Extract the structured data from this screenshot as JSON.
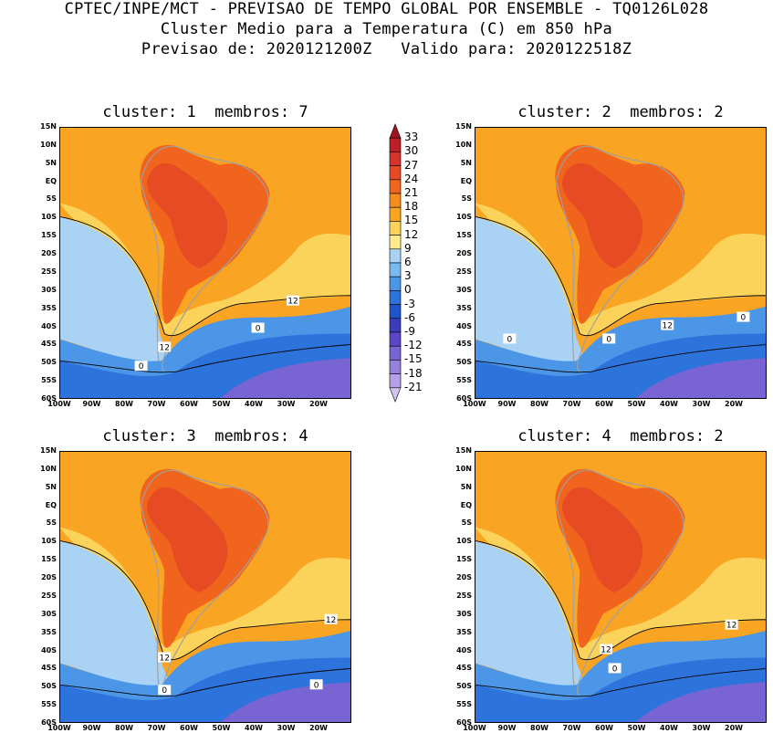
{
  "header": {
    "line1": "CPTEC/INPE/MCT - PREVISAO DE TEMPO GLOBAL POR ENSEMBLE - TQ0126L028",
    "line2": "Cluster Medio para a Temperatura (C) em 850 hPa",
    "line3": "Previsao de: 2020121200Z   Valido para: 2020122518Z"
  },
  "panels": [
    {
      "title": "cluster: 1  membros: 7",
      "contour_labels": [
        "12",
        "12",
        "0",
        "0"
      ]
    },
    {
      "title": "cluster: 2  membros: 2",
      "contour_labels": [
        "12",
        "0",
        "0",
        "0"
      ]
    },
    {
      "title": "cluster: 3  membros: 4",
      "contour_labels": [
        "12",
        "12",
        "0",
        "0"
      ]
    },
    {
      "title": "cluster: 4  membros: 2",
      "contour_labels": [
        "12",
        "12",
        "0"
      ]
    }
  ],
  "axes": {
    "lat_labels": [
      "15N",
      "10N",
      "5N",
      "EQ",
      "5S",
      "10S",
      "15S",
      "20S",
      "25S",
      "30S",
      "35S",
      "40S",
      "45S",
      "50S",
      "55S",
      "60S"
    ],
    "lon_labels": [
      "100W",
      "90W",
      "80W",
      "70W",
      "60W",
      "50W",
      "40W",
      "30W",
      "20W"
    ]
  },
  "colorbar": {
    "levels": [
      "33",
      "30",
      "27",
      "24",
      "21",
      "18",
      "15",
      "12",
      "9",
      "6",
      "3",
      "0",
      "-3",
      "-6",
      "-9",
      "-12",
      "-15",
      "-18",
      "-21"
    ],
    "colors": [
      "#a0141e",
      "#be1e28",
      "#d7322d",
      "#e64b23",
      "#f0641e",
      "#f78c1e",
      "#f9a523",
      "#fbd35a",
      "#ffeb8c",
      "#a9d2f5",
      "#78b9f0",
      "#4b96e6",
      "#2d73dc",
      "#1e55c8",
      "#3c3cbe",
      "#5a46c8",
      "#7864d2",
      "#9682dc",
      "#b4a0e6",
      "#d2c3f0"
    ]
  },
  "map_colors": {
    "ocean_warm": "#f9a523",
    "ocean_mid": "#fbd35a",
    "ocean_cool": "#a9d2f5",
    "ocean_cold": "#4b96e6",
    "ocean_colder": "#2d73dc",
    "ocean_coldest": "#7864d2",
    "land_hot": "#f0641e",
    "land_hotter": "#e64b23",
    "border": "#a0a0a0"
  }
}
